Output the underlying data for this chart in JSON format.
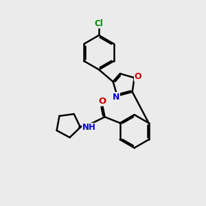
{
  "background_color": "#ebebeb",
  "bond_color": "#000000",
  "bond_width": 1.8,
  "atom_colors": {
    "N": "#0000cc",
    "O": "#cc0000",
    "Cl": "#008800",
    "H": "#000000"
  },
  "font_size": 8.5
}
